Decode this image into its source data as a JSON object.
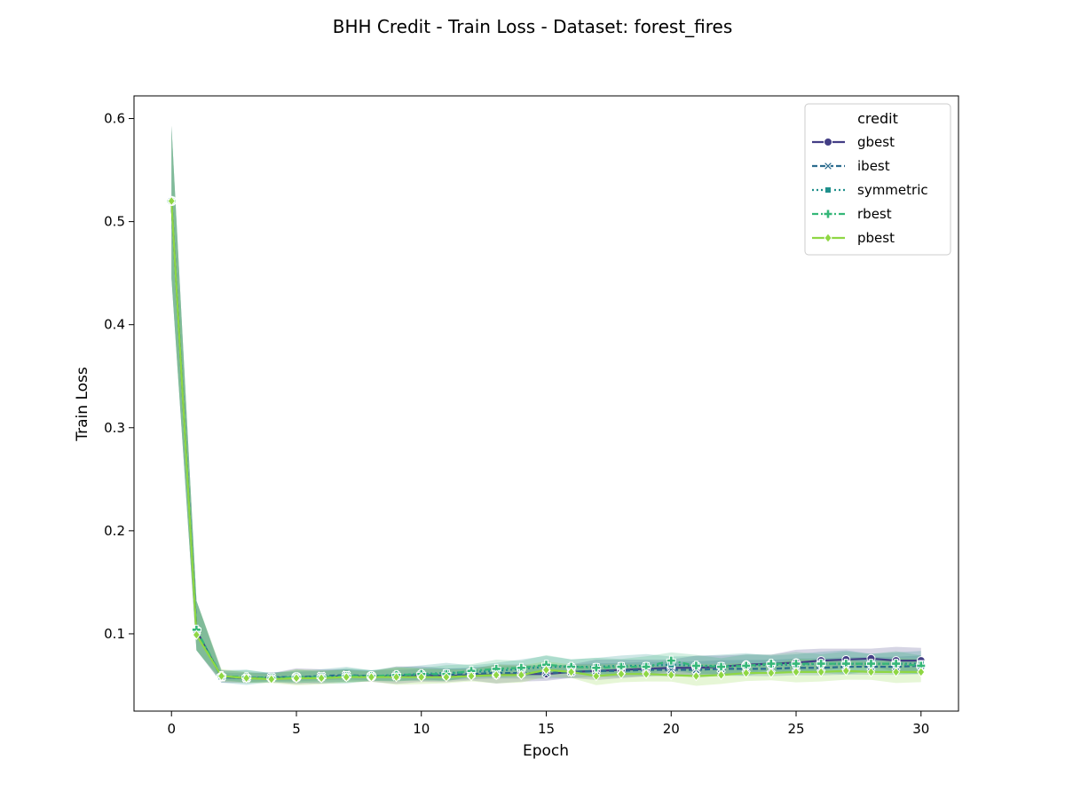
{
  "chart_data": {
    "type": "line",
    "title": "BHH Credit - Train Loss - Dataset: forest_fires",
    "xlabel": "Epoch",
    "ylabel": "Train Loss",
    "xlim": [
      -1.5,
      31.5
    ],
    "ylim": [
      0.025,
      0.622
    ],
    "xticks": [
      0,
      5,
      10,
      15,
      20,
      25,
      30
    ],
    "xtick_labels": [
      "0",
      "5",
      "10",
      "15",
      "20",
      "25",
      "30"
    ],
    "yticks": [
      0.1,
      0.2,
      0.3,
      0.4,
      0.5,
      0.6
    ],
    "ytick_labels": [
      "0.1",
      "0.2",
      "0.3",
      "0.4",
      "0.5",
      "0.6"
    ],
    "legend": {
      "title": "credit",
      "placement": "top-right"
    },
    "x": [
      0,
      1,
      2,
      3,
      4,
      5,
      6,
      7,
      8,
      9,
      10,
      11,
      12,
      13,
      14,
      15,
      16,
      17,
      18,
      19,
      20,
      21,
      22,
      23,
      24,
      25,
      26,
      27,
      28,
      29,
      30
    ],
    "band_bounds": {
      "epoch0_low": 0.445,
      "epoch0_high": 0.593,
      "epoch1_low": 0.084,
      "epoch1_high": 0.132
    },
    "series": [
      {
        "name": "gbest",
        "color": "#433e85",
        "dash": "",
        "marker": "circle",
        "values": [
          0.52,
          0.103,
          0.058,
          0.057,
          0.057,
          0.058,
          0.058,
          0.059,
          0.058,
          0.059,
          0.06,
          0.059,
          0.06,
          0.06,
          0.061,
          0.061,
          0.063,
          0.064,
          0.065,
          0.066,
          0.067,
          0.067,
          0.068,
          0.07,
          0.071,
          0.072,
          0.074,
          0.075,
          0.076,
          0.074,
          0.074
        ]
      },
      {
        "name": "ibest",
        "color": "#2c6c8e",
        "dash": "6,3",
        "marker": "x",
        "values": [
          0.52,
          0.103,
          0.058,
          0.057,
          0.058,
          0.058,
          0.059,
          0.06,
          0.059,
          0.059,
          0.06,
          0.06,
          0.061,
          0.062,
          0.062,
          0.062,
          0.063,
          0.064,
          0.064,
          0.065,
          0.065,
          0.065,
          0.066,
          0.066,
          0.066,
          0.067,
          0.067,
          0.068,
          0.068,
          0.068,
          0.069
        ]
      },
      {
        "name": "symmetric",
        "color": "#20908c",
        "dash": "2,3",
        "marker": "square",
        "values": [
          0.52,
          0.103,
          0.058,
          0.057,
          0.057,
          0.058,
          0.058,
          0.059,
          0.059,
          0.06,
          0.061,
          0.062,
          0.063,
          0.064,
          0.066,
          0.068,
          0.068,
          0.068,
          0.069,
          0.069,
          0.07,
          0.069,
          0.069,
          0.069,
          0.07,
          0.07,
          0.071,
          0.071,
          0.071,
          0.071,
          0.071
        ]
      },
      {
        "name": "rbest",
        "color": "#35b778",
        "dash": "7,3,2,3",
        "marker": "plus",
        "values": [
          0.52,
          0.104,
          0.059,
          0.058,
          0.057,
          0.058,
          0.058,
          0.059,
          0.059,
          0.06,
          0.061,
          0.061,
          0.064,
          0.066,
          0.067,
          0.07,
          0.068,
          0.067,
          0.068,
          0.068,
          0.074,
          0.069,
          0.068,
          0.069,
          0.071,
          0.071,
          0.071,
          0.071,
          0.071,
          0.071,
          0.069
        ]
      },
      {
        "name": "pbest",
        "color": "#8fd744",
        "dash": "",
        "marker": "diamond",
        "values": [
          0.52,
          0.099,
          0.059,
          0.057,
          0.056,
          0.057,
          0.057,
          0.058,
          0.058,
          0.058,
          0.058,
          0.058,
          0.059,
          0.06,
          0.06,
          0.065,
          0.063,
          0.059,
          0.061,
          0.061,
          0.06,
          0.059,
          0.06,
          0.062,
          0.062,
          0.063,
          0.063,
          0.064,
          0.063,
          0.063,
          0.063
        ]
      }
    ]
  }
}
